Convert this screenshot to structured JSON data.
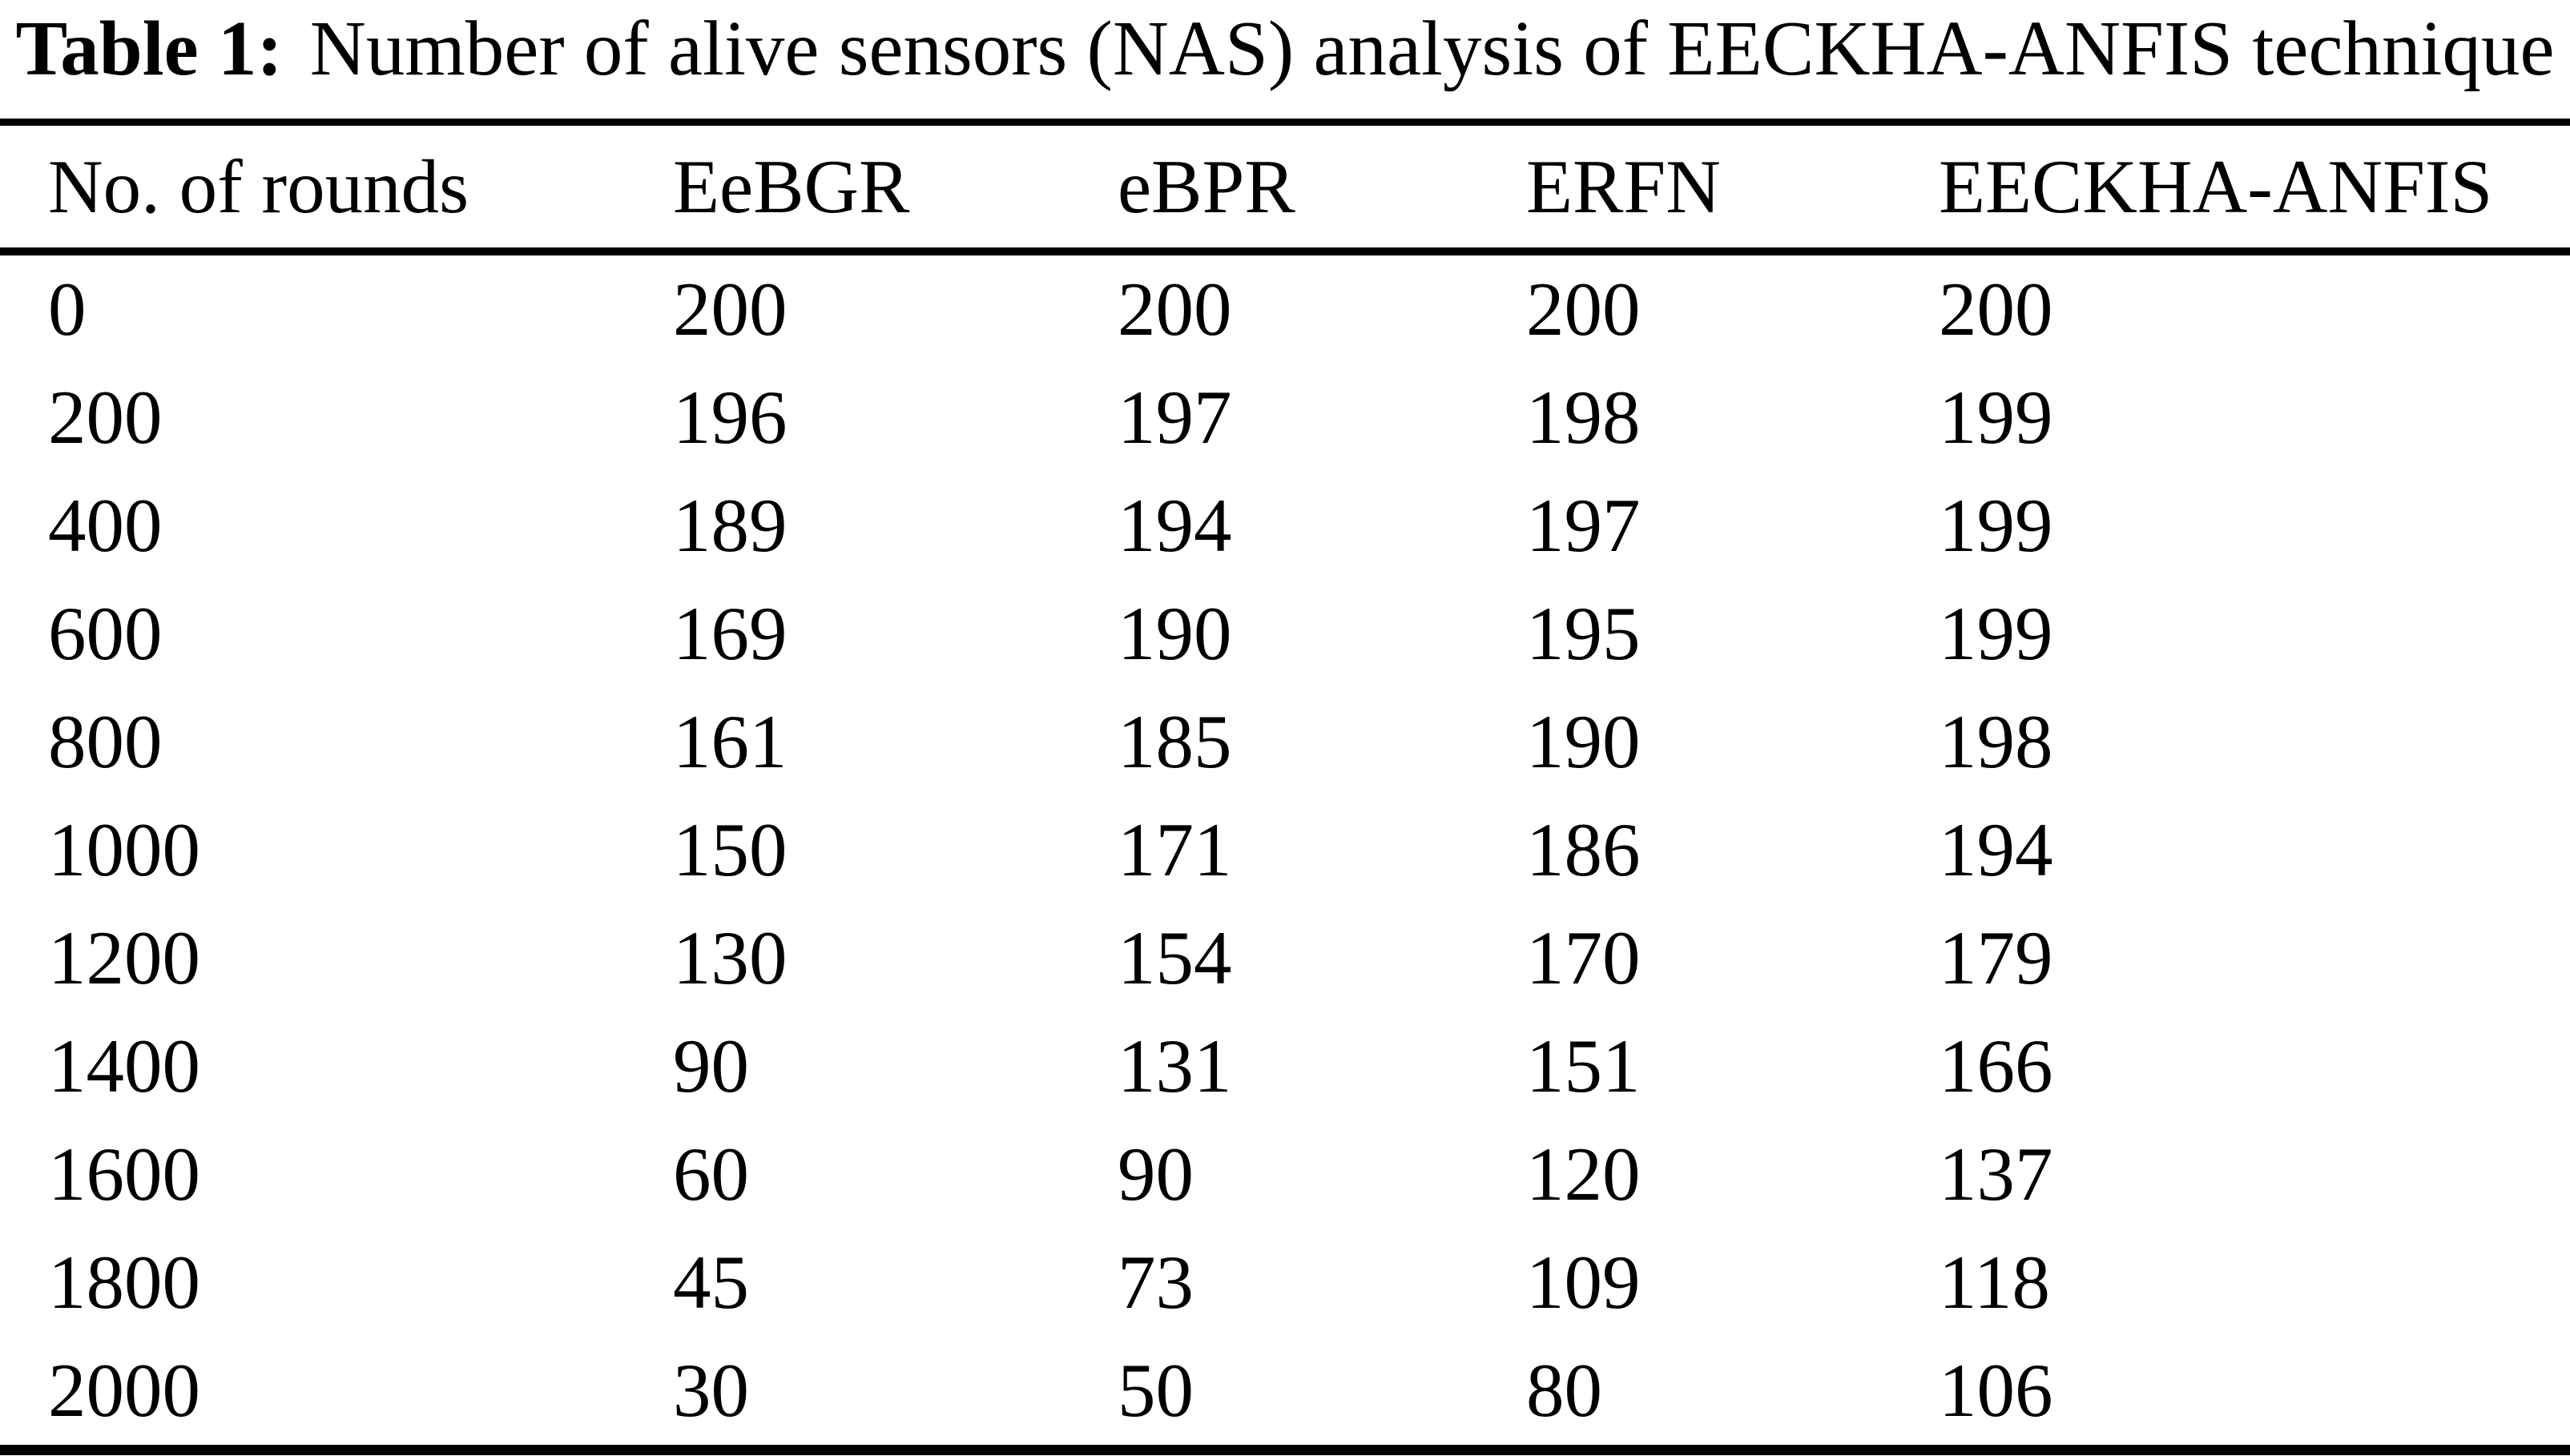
{
  "title": {
    "label": "Table 1:",
    "text": "Number of alive sensors (NAS) analysis of EECKHA-ANFIS technique"
  },
  "table": {
    "headers": [
      "No. of rounds",
      "EeBGR",
      "eBPR",
      "ERFN",
      "EECKHA-ANFIS"
    ],
    "rows": [
      [
        "0",
        "200",
        "200",
        "200",
        "200"
      ],
      [
        "200",
        "196",
        "197",
        "198",
        "199"
      ],
      [
        "400",
        "189",
        "194",
        "197",
        "199"
      ],
      [
        "600",
        "169",
        "190",
        "195",
        "199"
      ],
      [
        "800",
        "161",
        "185",
        "190",
        "198"
      ],
      [
        "1000",
        "150",
        "171",
        "186",
        "194"
      ],
      [
        "1200",
        "130",
        "154",
        "170",
        "179"
      ],
      [
        "1400",
        "90",
        "131",
        "151",
        "166"
      ],
      [
        "1600",
        "60",
        "90",
        "120",
        "137"
      ],
      [
        "1800",
        "45",
        "73",
        "109",
        "118"
      ],
      [
        "2000",
        "30",
        "50",
        "80",
        "106"
      ]
    ]
  },
  "colors": {
    "text": "#000000",
    "background": "#ffffff",
    "rule": "#000000"
  },
  "chart_data": {
    "type": "table",
    "title": "Table 1: Number of alive sensors (NAS) analysis of EECKHA-ANFIS technique",
    "xlabel": "No. of rounds",
    "ylabel": "Number of alive sensors (NAS)",
    "categories": [
      0,
      200,
      400,
      600,
      800,
      1000,
      1200,
      1400,
      1600,
      1800,
      2000
    ],
    "series": [
      {
        "name": "EeBGR",
        "values": [
          200,
          196,
          189,
          169,
          161,
          150,
          130,
          90,
          60,
          45,
          30
        ]
      },
      {
        "name": "eBPR",
        "values": [
          200,
          197,
          194,
          190,
          185,
          171,
          154,
          131,
          90,
          73,
          50
        ]
      },
      {
        "name": "ERFN",
        "values": [
          200,
          198,
          197,
          195,
          190,
          186,
          170,
          151,
          120,
          109,
          80
        ]
      },
      {
        "name": "EECKHA-ANFIS",
        "values": [
          200,
          199,
          199,
          199,
          198,
          194,
          179,
          166,
          137,
          118,
          106
        ]
      }
    ]
  }
}
